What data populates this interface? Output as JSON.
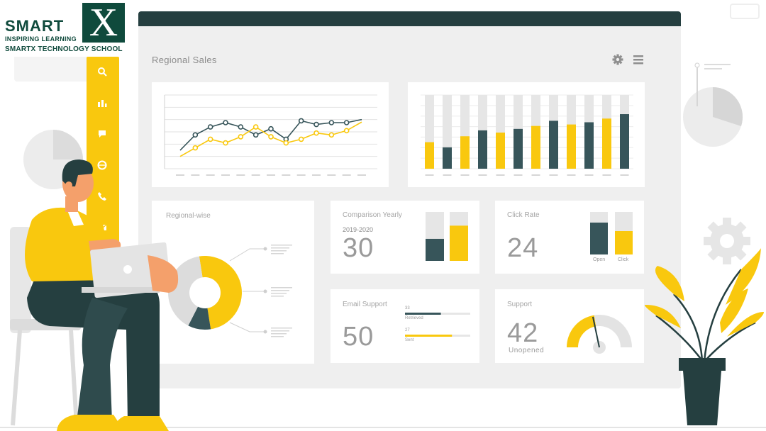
{
  "brand": {
    "wordmark": "SMART",
    "mark": "X",
    "tagline": "INSPIRING LEARNING",
    "school": "SMARTX TECHNOLOGY SCHOOL"
  },
  "colors": {
    "accent": "#f9c80e",
    "dark": "#37555a",
    "titlebar": "#253f40",
    "panel": "#efefef",
    "card": "#ffffff",
    "muted": "#d9d9d9"
  },
  "dashboard": {
    "title": "Regional Sales",
    "toolbar": {
      "settings_icon": "gear-icon",
      "menu_icon": "hamburger-icon"
    },
    "sidebar_icons": [
      "search-icon",
      "bar-chart-icon",
      "chat-icon",
      "globe-icon",
      "phone-icon",
      "mail-icon"
    ],
    "line_chart": {
      "chart_data": {
        "type": "line",
        "series": [
          {
            "values": [
              30,
              55,
              68,
              75,
              68,
              55,
              65,
              48,
              78,
              72,
              75,
              75,
              80
            ]
          },
          {
            "values": [
              20,
              34,
              48,
              42,
              52,
              68,
              52,
              42,
              48,
              58,
              55,
              62,
              76
            ]
          }
        ],
        "ylim": [
          0,
          120
        ]
      }
    },
    "bar_chart": {
      "chart_data": {
        "type": "bar",
        "series": [
          {
            "values": [
              0.36,
              0,
              0.44,
              0,
              0.49,
              0,
              0.58,
              0,
              0.6,
              0,
              0.68,
              0
            ]
          },
          {
            "values": [
              0,
              0.29,
              0,
              0.52,
              0,
              0.54,
              0,
              0.65,
              0,
              0.63,
              0,
              0.74
            ]
          }
        ],
        "ylim": [
          0,
          1
        ]
      }
    },
    "regional": {
      "title": "Regional-wise",
      "chart_data": {
        "type": "pie",
        "values": [
          50,
          10,
          40
        ]
      }
    },
    "comparison": {
      "title": "Comparison Yearly",
      "period": "2019-2020",
      "value": "30",
      "bars": [
        0.45,
        0.72
      ]
    },
    "click_rate": {
      "title": "Click Rate",
      "value": "24",
      "bars": [
        {
          "label": "Open",
          "fill": 0.75
        },
        {
          "label": "Click",
          "fill": 0.55
        }
      ]
    },
    "email_support": {
      "title": "Email Support",
      "value": "50",
      "rows": [
        {
          "count": "33",
          "label": "Retrieved",
          "fill": 0.55
        },
        {
          "count": "27",
          "label": "Sent",
          "fill": 0.72
        }
      ]
    },
    "support": {
      "title": "Support",
      "value": "42",
      "caption": "Unopened",
      "gauge": 0.45
    }
  }
}
